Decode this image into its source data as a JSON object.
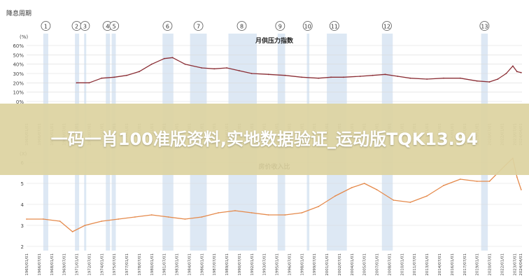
{
  "corner_label": "降息周期",
  "banner_text": "一码一肖100准版资料,实地数据验证_运动版TQK13.94",
  "period_markers": [
    "1",
    "2",
    "3",
    "4",
    "5",
    "6",
    "7",
    "8",
    "9",
    "10",
    "11",
    "12",
    "13"
  ],
  "x_tick_labels": [
    "1965/01/01",
    "1966/07/01",
    "1968/01/01",
    "1969/07/01",
    "1971/01/01",
    "1972/07/01",
    "1974/01/01",
    "1975/07/01",
    "1977/01/01",
    "1978/07/01",
    "1980/01/01",
    "1981/07/01",
    "1983/01/01",
    "1984/07/01",
    "1986/01/01",
    "1987/07/01",
    "1989/01/01",
    "1990/07/01",
    "1992/01/01",
    "1993/07/01",
    "1995/01/01",
    "1996/07/01",
    "1998/01/01",
    "1999/07/01",
    "2001/01/01",
    "2002/07/01",
    "2004/01/01",
    "2005/07/01",
    "2007/01/01",
    "2008/07/01",
    "2010/01/01",
    "2011/07/01",
    "2013/01/01",
    "2014/07/01",
    "2016/01/01",
    "2017/07/01",
    "2019/01/01",
    "2020/07/01",
    "2022/01/01",
    "2023/07/01",
    "2024/04/01"
  ],
  "chart_data": [
    {
      "type": "line",
      "title": "月供压力指数",
      "unit_label": "(%)",
      "ylim": [
        0,
        60
      ],
      "y_ticks": [
        "0%",
        "10%",
        "20%",
        "30%",
        "40%",
        "50%",
        "60%"
      ],
      "grid": true,
      "line_color": "#8b2e35",
      "shaded_periods_color": "#d6e4f2",
      "series": [
        {
          "x": [
            1971.0,
            1972.5,
            1974.0,
            1975.5,
            1977.0,
            1978.5,
            1980.0,
            1981.5,
            1982.5,
            1984.0,
            1986.0,
            1987.5,
            1989.0,
            1990.5,
            1992.0,
            1994.0,
            1996.0,
            1998.0,
            2000.0,
            2001.5,
            2003.0,
            2005.0,
            2006.5,
            2008.0,
            2009.5,
            2011.0,
            2013.0,
            2015.0,
            2017.0,
            2019.0,
            2020.5,
            2021.5,
            2022.5,
            2023.3,
            2023.8,
            2024.3
          ],
          "values": [
            20,
            20,
            25,
            26,
            28,
            32,
            40,
            46,
            47,
            40,
            36,
            35,
            36,
            33,
            30,
            29,
            28,
            26,
            25,
            26,
            26,
            27,
            28,
            29,
            27,
            25,
            24,
            25,
            25,
            22,
            21,
            24,
            30,
            38,
            32,
            31
          ]
        }
      ]
    },
    {
      "type": "line",
      "title": "房价收入比",
      "unit_label": "(X)",
      "ylim": [
        2,
        6
      ],
      "y_ticks": [
        "2",
        "3",
        "4",
        "5",
        "6"
      ],
      "grid": true,
      "line_color": "#e58a4c",
      "shaded_periods_color": "#d6e4f2",
      "series": [
        {
          "x": [
            1965.0,
            1967.0,
            1969.0,
            1970.5,
            1972.0,
            1974.0,
            1976.0,
            1978.0,
            1980.0,
            1982.0,
            1984.0,
            1986.0,
            1988.0,
            1990.0,
            1992.0,
            1994.0,
            1996.0,
            1998.0,
            2000.0,
            2002.0,
            2004.0,
            2005.5,
            2007.0,
            2009.0,
            2011.0,
            2013.0,
            2015.0,
            2017.0,
            2019.0,
            2020.5,
            2021.5,
            2022.5,
            2023.3,
            2023.8,
            2024.3
          ],
          "values": [
            3.3,
            3.3,
            3.2,
            2.7,
            3.0,
            3.2,
            3.3,
            3.4,
            3.5,
            3.4,
            3.3,
            3.4,
            3.6,
            3.7,
            3.6,
            3.5,
            3.5,
            3.6,
            3.9,
            4.4,
            4.8,
            5.0,
            4.7,
            4.2,
            4.1,
            4.4,
            4.9,
            5.2,
            5.1,
            5.1,
            5.5,
            5.9,
            6.2,
            5.3,
            4.7
          ]
        }
      ]
    }
  ]
}
